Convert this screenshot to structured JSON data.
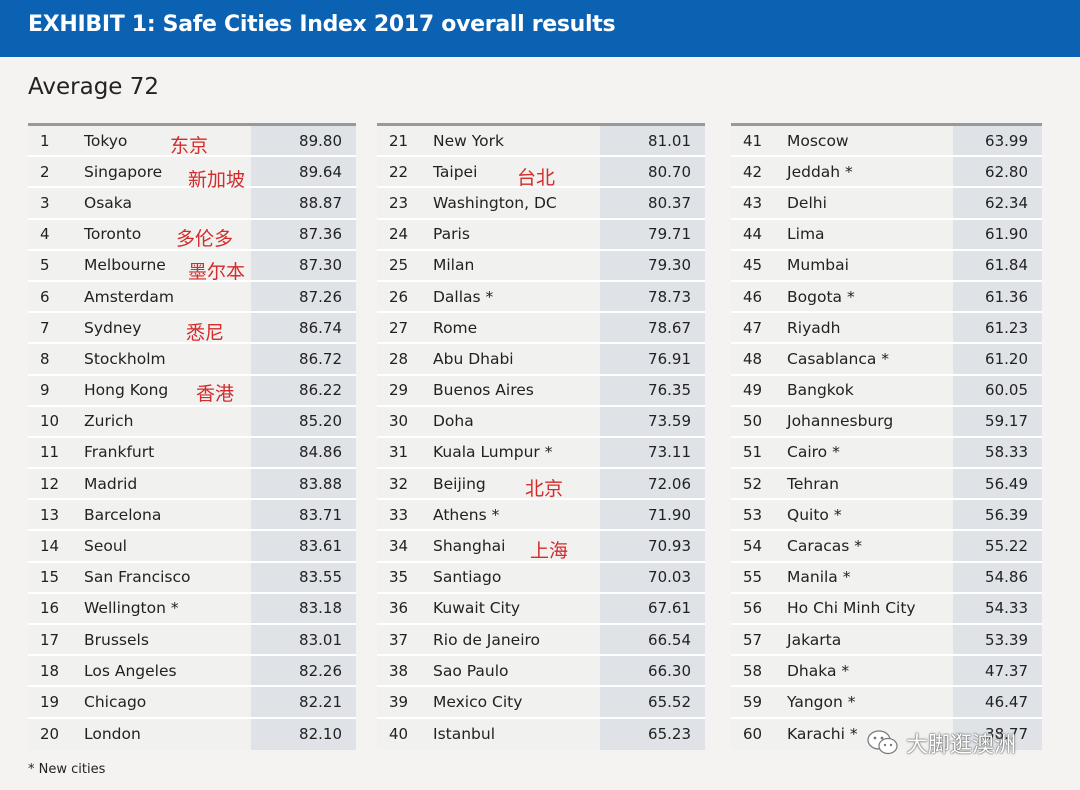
{
  "header": {
    "title": "EXHIBIT 1: Safe Cities Index 2017 overall results"
  },
  "average": "Average 72",
  "columns": [
    [
      {
        "rank": "1",
        "city": "Tokyo",
        "score": "89.80",
        "cn": "东京"
      },
      {
        "rank": "2",
        "city": "Singapore",
        "score": "89.64",
        "cn": "新加坡"
      },
      {
        "rank": "3",
        "city": "Osaka",
        "score": "88.87"
      },
      {
        "rank": "4",
        "city": "Toronto",
        "score": "87.36",
        "cn": "多伦多"
      },
      {
        "rank": "5",
        "city": "Melbourne",
        "score": "87.30",
        "cn": "墨尔本"
      },
      {
        "rank": "6",
        "city": "Amsterdam",
        "score": "87.26"
      },
      {
        "rank": "7",
        "city": "Sydney",
        "score": "86.74",
        "cn": "悉尼"
      },
      {
        "rank": "8",
        "city": "Stockholm",
        "score": "86.72"
      },
      {
        "rank": "9",
        "city": "Hong Kong",
        "score": "86.22",
        "cn": "香港"
      },
      {
        "rank": "10",
        "city": "Zurich",
        "score": "85.20"
      },
      {
        "rank": "11",
        "city": "Frankfurt",
        "score": "84.86"
      },
      {
        "rank": "12",
        "city": "Madrid",
        "score": "83.88"
      },
      {
        "rank": "13",
        "city": "Barcelona",
        "score": "83.71"
      },
      {
        "rank": "14",
        "city": "Seoul",
        "score": "83.61"
      },
      {
        "rank": "15",
        "city": "San Francisco",
        "score": "83.55"
      },
      {
        "rank": "16",
        "city": "Wellington *",
        "score": "83.18"
      },
      {
        "rank": "17",
        "city": "Brussels",
        "score": "83.01"
      },
      {
        "rank": "18",
        "city": "Los Angeles",
        "score": "82.26"
      },
      {
        "rank": "19",
        "city": "Chicago",
        "score": "82.21"
      },
      {
        "rank": "20",
        "city": "London",
        "score": "82.10"
      }
    ],
    [
      {
        "rank": "21",
        "city": "New York",
        "score": "81.01"
      },
      {
        "rank": "22",
        "city": "Taipei",
        "score": "80.70",
        "cn": "台北"
      },
      {
        "rank": "23",
        "city": "Washington, DC",
        "score": "80.37"
      },
      {
        "rank": "24",
        "city": "Paris",
        "score": "79.71"
      },
      {
        "rank": "25",
        "city": "Milan",
        "score": "79.30"
      },
      {
        "rank": "26",
        "city": "Dallas *",
        "score": "78.73"
      },
      {
        "rank": "27",
        "city": "Rome",
        "score": "78.67"
      },
      {
        "rank": "28",
        "city": "Abu Dhabi",
        "score": "76.91"
      },
      {
        "rank": "29",
        "city": "Buenos Aires",
        "score": "76.35"
      },
      {
        "rank": "30",
        "city": "Doha",
        "score": "73.59"
      },
      {
        "rank": "31",
        "city": "Kuala Lumpur *",
        "score": "73.11"
      },
      {
        "rank": "32",
        "city": "Beijing",
        "score": "72.06",
        "cn": "北京"
      },
      {
        "rank": "33",
        "city": "Athens *",
        "score": "71.90"
      },
      {
        "rank": "34",
        "city": "Shanghai",
        "score": "70.93",
        "cn": "上海"
      },
      {
        "rank": "35",
        "city": "Santiago",
        "score": "70.03"
      },
      {
        "rank": "36",
        "city": "Kuwait City",
        "score": "67.61"
      },
      {
        "rank": "37",
        "city": "Rio de Janeiro",
        "score": "66.54"
      },
      {
        "rank": "38",
        "city": "Sao Paulo",
        "score": "66.30"
      },
      {
        "rank": "39",
        "city": "Mexico City",
        "score": "65.52"
      },
      {
        "rank": "40",
        "city": "Istanbul",
        "score": "65.23"
      }
    ],
    [
      {
        "rank": "41",
        "city": "Moscow",
        "score": "63.99"
      },
      {
        "rank": "42",
        "city": "Jeddah *",
        "score": "62.80"
      },
      {
        "rank": "43",
        "city": "Delhi",
        "score": "62.34"
      },
      {
        "rank": "44",
        "city": "Lima",
        "score": "61.90"
      },
      {
        "rank": "45",
        "city": "Mumbai",
        "score": "61.84"
      },
      {
        "rank": "46",
        "city": "Bogota *",
        "score": "61.36"
      },
      {
        "rank": "47",
        "city": "Riyadh",
        "score": "61.23"
      },
      {
        "rank": "48",
        "city": "Casablanca *",
        "score": "61.20"
      },
      {
        "rank": "49",
        "city": "Bangkok",
        "score": "60.05"
      },
      {
        "rank": "50",
        "city": "Johannesburg",
        "score": "59.17"
      },
      {
        "rank": "51",
        "city": "Cairo *",
        "score": "58.33"
      },
      {
        "rank": "52",
        "city": "Tehran",
        "score": "56.49"
      },
      {
        "rank": "53",
        "city": "Quito *",
        "score": "56.39"
      },
      {
        "rank": "54",
        "city": "Caracas *",
        "score": "55.22"
      },
      {
        "rank": "55",
        "city": "Manila *",
        "score": "54.86"
      },
      {
        "rank": "56",
        "city": "Ho Chi Minh City",
        "score": "54.33"
      },
      {
        "rank": "57",
        "city": "Jakarta",
        "score": "53.39"
      },
      {
        "rank": "58",
        "city": "Dhaka *",
        "score": "47.37"
      },
      {
        "rank": "59",
        "city": "Yangon *",
        "score": "46.47"
      },
      {
        "rank": "60",
        "city": "Karachi *",
        "score": "38.77"
      }
    ]
  ],
  "footnote": "* New cities",
  "watermark": {
    "text": "大脚逛澳洲",
    "icon": "wechat-icon"
  }
}
